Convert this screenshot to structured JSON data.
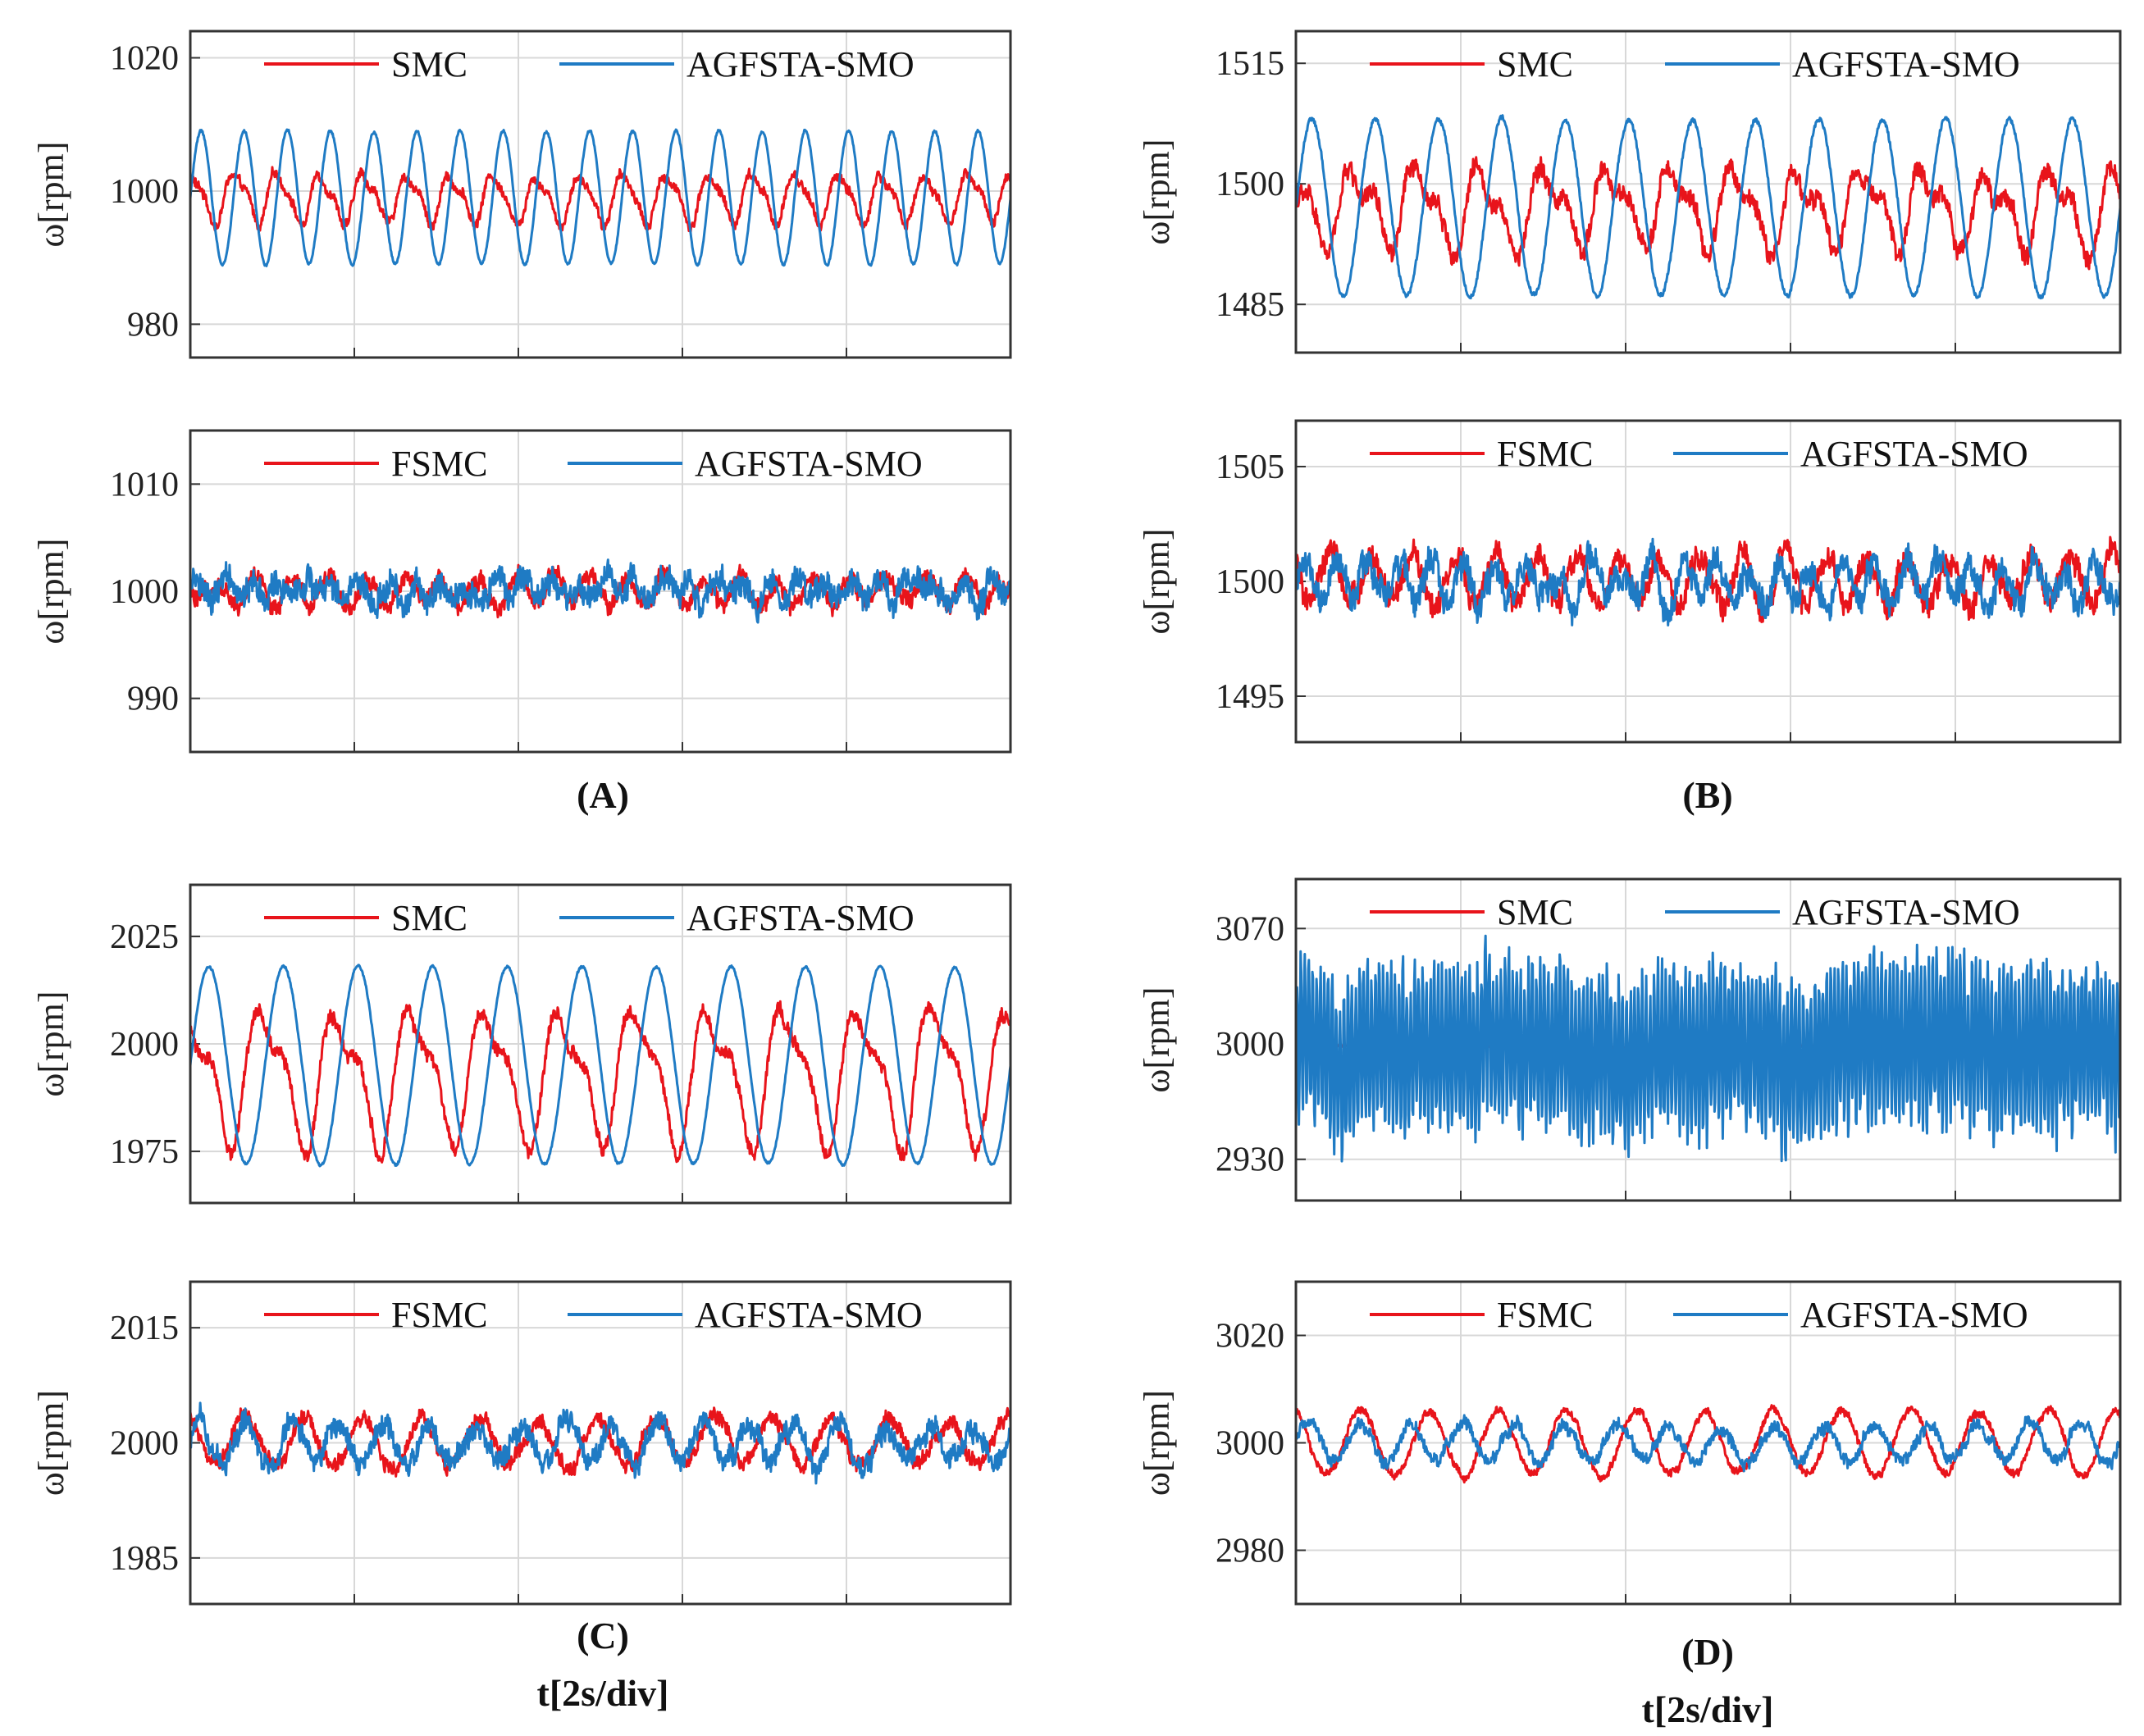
{
  "figure": {
    "captions": [
      "(A)",
      "(B)",
      "(C)",
      "(D)"
    ],
    "time_label": "t[2s/div]",
    "colors": {
      "red": "#e8141b",
      "blue": "#1f7bc4",
      "grid": "#d8d8d8",
      "axis": "#333333"
    }
  },
  "chart_data": [
    {
      "id": "A1",
      "type": "line",
      "ylabel": "ω[rpm]",
      "ylim": [
        975,
        1024
      ],
      "yticks": [
        980,
        1000,
        1020
      ],
      "xdivisions": 5,
      "series": [
        {
          "name": "SMC",
          "color": "#e8141b",
          "base": 999,
          "amp": 4,
          "cycles": 19,
          "noise": 0.8,
          "phase": 0.2,
          "sharp": 0.3
        },
        {
          "name": "AGFSTA-SMO",
          "color": "#1f7bc4",
          "base": 999,
          "amp": 10,
          "cycles": 19,
          "noise": 0.2,
          "phase": 0.0,
          "sharp": 0
        }
      ]
    },
    {
      "id": "B1",
      "type": "line",
      "ylabel": "ω[rpm]",
      "ylim": [
        1479,
        1519
      ],
      "yticks": [
        1485,
        1500,
        1515
      ],
      "xdivisions": 5,
      "series": [
        {
          "name": "SMC",
          "color": "#e8141b",
          "base": 1497,
          "amp": 5.5,
          "cycles": 13,
          "noise": 1.3,
          "phase": 0.3,
          "sharp": 0.5
        },
        {
          "name": "AGFSTA-SMO",
          "color": "#1f7bc4",
          "base": 1497,
          "amp": 11,
          "cycles": 13,
          "noise": 0.3,
          "phase": 0.0,
          "sharp": 0
        }
      ]
    },
    {
      "id": "A2",
      "type": "line",
      "ylabel": "ω[rpm]",
      "ylim": [
        985,
        1015
      ],
      "yticks": [
        990,
        1000,
        1010
      ],
      "xdivisions": 5,
      "series": [
        {
          "name": "FSMC",
          "color": "#e8141b",
          "base": 1000,
          "amp": 1.2,
          "cycles": 22,
          "noise": 0.9,
          "phase": 0.5,
          "sharp": 0
        },
        {
          "name": "AGFSTA-SMO",
          "color": "#1f7bc4",
          "base": 1000,
          "amp": 0.8,
          "cycles": 30,
          "noise": 1.4,
          "phase": 0.0,
          "sharp": 0
        }
      ]
    },
    {
      "id": "B2",
      "type": "line",
      "ylabel": "ω[rpm]",
      "ylim": [
        1493,
        1507
      ],
      "yticks": [
        1495,
        1500,
        1505
      ],
      "xdivisions": 5,
      "series": [
        {
          "name": "FSMC",
          "color": "#e8141b",
          "base": 1500,
          "amp": 1.0,
          "cycles": 20,
          "noise": 0.6,
          "phase": 0.4,
          "sharp": 0
        },
        {
          "name": "AGFSTA-SMO",
          "color": "#1f7bc4",
          "base": 1500,
          "amp": 0.8,
          "cycles": 26,
          "noise": 0.7,
          "phase": 0.0,
          "sharp": 0
        }
      ]
    },
    {
      "id": "C1",
      "type": "line",
      "ylabel": "ω[rpm]",
      "ylim": [
        1963,
        2037
      ],
      "yticks": [
        1975,
        2000,
        2025
      ],
      "xdivisions": 5,
      "series": [
        {
          "name": "SMC",
          "color": "#e8141b",
          "base": 1993,
          "amp": 17,
          "cycles": 11,
          "noise": 1.8,
          "phase": 0.25,
          "sharp": 0.4
        },
        {
          "name": "AGFSTA-SMO",
          "color": "#1f7bc4",
          "base": 1995,
          "amp": 23,
          "cycles": 11,
          "noise": 0.3,
          "phase": 0.0,
          "sharp": 0
        }
      ]
    },
    {
      "id": "D1",
      "type": "line",
      "ylabel": "ω[rpm]",
      "ylim": [
        2905,
        3100
      ],
      "yticks": [
        2930,
        3000,
        3070
      ],
      "xdivisions": 5,
      "series": [
        {
          "name": "SMC",
          "color": "#e8141b",
          "base": 2998,
          "amp": 1,
          "cycles": 5,
          "noise": 0.5,
          "phase": 0.0,
          "sharp": 0
        },
        {
          "name": "AGFSTA-SMO",
          "color": "#1f7bc4",
          "base": 2998,
          "amp": 46,
          "cycles": 210,
          "noise": 14,
          "phase": 0.0,
          "sharp": 0
        }
      ]
    },
    {
      "id": "C2",
      "type": "line",
      "ylabel": "ω[rpm]",
      "ylim": [
        1979,
        2021
      ],
      "yticks": [
        1985,
        2000,
        2015
      ],
      "xdivisions": 5,
      "series": [
        {
          "name": "FSMC",
          "color": "#e8141b",
          "base": 2000,
          "amp": 3,
          "cycles": 14,
          "noise": 1.1,
          "phase": 0.3,
          "sharp": 0
        },
        {
          "name": "AGFSTA-SMO",
          "color": "#1f7bc4",
          "base": 2000,
          "amp": 2.5,
          "cycles": 18,
          "noise": 1.6,
          "phase": 0.0,
          "sharp": 0
        }
      ]
    },
    {
      "id": "D2",
      "type": "line",
      "ylabel": "ω[rpm]",
      "ylim": [
        2970,
        3030
      ],
      "yticks": [
        2980,
        3000,
        3020
      ],
      "xdivisions": 5,
      "series": [
        {
          "name": "FSMC",
          "color": "#e8141b",
          "base": 3000,
          "amp": 6,
          "cycles": 12,
          "noise": 0.8,
          "phase": 0.3,
          "sharp": 0
        },
        {
          "name": "AGFSTA-SMO",
          "color": "#1f7bc4",
          "base": 3000,
          "amp": 3.5,
          "cycles": 16,
          "noise": 1.3,
          "phase": 0.0,
          "sharp": 0
        }
      ]
    }
  ]
}
